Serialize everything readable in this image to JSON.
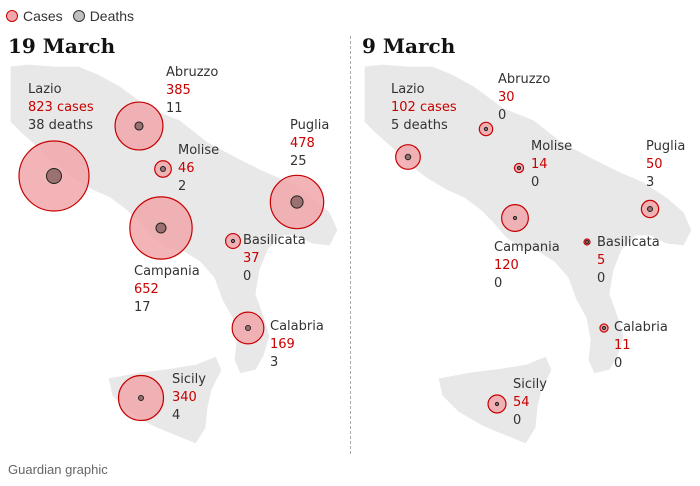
{
  "legend": {
    "cases_label": "Cases",
    "deaths_label": "Deaths"
  },
  "colors": {
    "cases_fill": "#f1a7ab",
    "cases_stroke": "#c70000",
    "deaths_fill": "#9a7070",
    "land": "#e8e8e8",
    "case_text": "#c70000"
  },
  "panels": [
    {
      "title": "19 March",
      "regions": [
        {
          "name": "Lazio",
          "cases": "823 cases",
          "deaths": "38 deaths",
          "case_count": 823,
          "death_count": 38
        },
        {
          "name": "Abruzzo",
          "cases": "385",
          "deaths": "11",
          "case_count": 385,
          "death_count": 11
        },
        {
          "name": "Molise",
          "cases": "46",
          "deaths": "2",
          "case_count": 46,
          "death_count": 2
        },
        {
          "name": "Puglia",
          "cases": "478",
          "deaths": "25",
          "case_count": 478,
          "death_count": 25
        },
        {
          "name": "Campania",
          "cases": "652",
          "deaths": "17",
          "case_count": 652,
          "death_count": 17
        },
        {
          "name": "Basilicata",
          "cases": "37",
          "deaths": "0",
          "case_count": 37,
          "death_count": 0
        },
        {
          "name": "Calabria",
          "cases": "169",
          "deaths": "3",
          "case_count": 169,
          "death_count": 3
        },
        {
          "name": "Sicily",
          "cases": "340",
          "deaths": "4",
          "case_count": 340,
          "death_count": 4
        }
      ]
    },
    {
      "title": "9 March",
      "regions": [
        {
          "name": "Lazio",
          "cases": "102 cases",
          "deaths": "5 deaths",
          "case_count": 102,
          "death_count": 5
        },
        {
          "name": "Abruzzo",
          "cases": "30",
          "deaths": "0",
          "case_count": 30,
          "death_count": 0
        },
        {
          "name": "Molise",
          "cases": "14",
          "deaths": "0",
          "case_count": 14,
          "death_count": 0
        },
        {
          "name": "Puglia",
          "cases": "50",
          "deaths": "3",
          "case_count": 50,
          "death_count": 3
        },
        {
          "name": "Campania",
          "cases": "120",
          "deaths": "0",
          "case_count": 120,
          "death_count": 0
        },
        {
          "name": "Basilicata",
          "cases": "5",
          "deaths": "0",
          "case_count": 5,
          "death_count": 0
        },
        {
          "name": "Calabria",
          "cases": "11",
          "deaths": "0",
          "case_count": 11,
          "death_count": 0
        },
        {
          "name": "Sicily",
          "cases": "54",
          "deaths": "0",
          "case_count": 54,
          "death_count": 0
        }
      ]
    }
  ],
  "footer": "Guardian graphic"
}
